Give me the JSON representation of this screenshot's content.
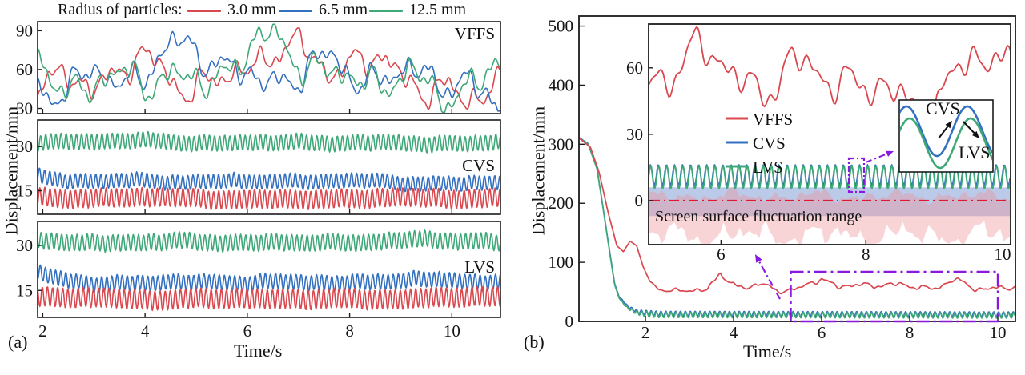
{
  "colors": {
    "red": "#d9484f",
    "blue": "#3470c0",
    "green": "#3fa878",
    "purple": "#8a18e0",
    "crimson": "#e01830",
    "axis": "#1c1c1c",
    "band_blue": "rgba(104,138,205,0.45)",
    "band_pink": "rgba(238,142,150,0.38)"
  },
  "chart_data": [
    {
      "type": "line",
      "panel": "(a)",
      "xlabel": "Time/s",
      "ylabel": "Displacement/mm",
      "xlim": [
        1.9,
        10.95
      ],
      "xticks": [
        2,
        4,
        6,
        8,
        10
      ],
      "legend": {
        "title": "Radius of particles:",
        "entries": [
          {
            "label": "3.0 mm",
            "color": "red"
          },
          {
            "label": "6.5 mm",
            "color": "blue"
          },
          {
            "label": "12.5 mm",
            "color": "green"
          }
        ]
      },
      "subplots": [
        {
          "label": "VFFS",
          "ylim": [
            26,
            97
          ],
          "yticks": [
            30,
            60,
            90
          ],
          "series": [
            {
              "legend": "3.0 mm",
              "color": "red",
              "kind": "wander",
              "mean": 57,
              "amp": 40,
              "clamp": [
                28,
                92
              ],
              "seed": 11
            },
            {
              "legend": "6.5 mm",
              "color": "blue",
              "kind": "wander",
              "mean": 56,
              "amp": 40,
              "clamp": [
                28,
                90
              ],
              "seed": 22
            },
            {
              "legend": "12.5 mm",
              "color": "green",
              "kind": "wander",
              "mean": 56,
              "amp": 42,
              "clamp": [
                27,
                95
              ],
              "seed": 33
            }
          ]
        },
        {
          "label": "CVS",
          "ylim": [
            7,
            39
          ],
          "yticks": [
            15,
            30
          ],
          "series": [
            {
              "legend": "12.5 mm",
              "color": "green",
              "kind": "osc",
              "mean": 31.4,
              "slow": 1.3,
              "amp": 2.6,
              "freq": 10,
              "seed": 41
            },
            {
              "legend": "6.5 mm",
              "color": "blue",
              "kind": "osc",
              "mean": 18.0,
              "slow": 1.4,
              "amp": 2.4,
              "freq": 10,
              "seed": 42,
              "start_boost": 3.2
            },
            {
              "legend": "3.0 mm",
              "color": "red",
              "kind": "osc",
              "mean": 12.4,
              "slow": 1.1,
              "amp": 3.1,
              "freq": 10,
              "seed": 43
            }
          ]
        },
        {
          "label": "LVS",
          "ylim": [
            6,
            38
          ],
          "yticks": [
            15,
            30
          ],
          "series": [
            {
              "legend": "12.5 mm",
              "color": "green",
              "kind": "osc",
              "mean": 31.2,
              "slow": 1.3,
              "amp": 2.7,
              "freq": 10,
              "seed": 51
            },
            {
              "legend": "6.5 mm",
              "color": "blue",
              "kind": "osc",
              "mean": 17.8,
              "slow": 1.5,
              "amp": 2.5,
              "freq": 10,
              "seed": 52,
              "start_boost": 3.0
            },
            {
              "legend": "3.0 mm",
              "color": "red",
              "kind": "osc",
              "mean": 12.3,
              "slow": 1.1,
              "amp": 3.2,
              "freq": 10,
              "seed": 53
            }
          ]
        }
      ]
    },
    {
      "type": "line",
      "panel": "(b)",
      "xlabel": "Time/s",
      "ylabel": "Displacement/mm",
      "xlim": [
        0.49,
        10.4
      ],
      "ylim": [
        0,
        517
      ],
      "xticks": [
        2,
        4,
        6,
        8,
        10
      ],
      "yticks": [
        0,
        100,
        200,
        300,
        400,
        500
      ],
      "series": [
        {
          "name": "CVS",
          "color": "blue",
          "kind": "decay_osc",
          "keypoints": [
            [
              0.5,
              311
            ],
            [
              0.7,
              301
            ],
            [
              0.9,
              259
            ],
            [
              1.05,
              186
            ],
            [
              1.2,
              112
            ],
            [
              1.3,
              64
            ],
            [
              1.4,
              42
            ],
            [
              1.5,
              34
            ],
            [
              1.6,
              25
            ],
            [
              1.8,
              17
            ],
            [
              2.0,
              14.5
            ],
            [
              2.3,
              13
            ],
            [
              10.4,
              12
            ]
          ],
          "osc_amp": 4.2,
          "osc_freq": 9,
          "osc_phase": 0.5,
          "ramp": [
            1.35,
            2.0
          ]
        },
        {
          "name": "LVS",
          "color": "green",
          "kind": "decay_osc",
          "keypoints": [
            [
              0.5,
              310
            ],
            [
              0.7,
              300
            ],
            [
              0.9,
              258
            ],
            [
              1.05,
              185
            ],
            [
              1.2,
              110
            ],
            [
              1.3,
              62
            ],
            [
              1.4,
              40
            ],
            [
              1.5,
              30
            ],
            [
              1.6,
              22
            ],
            [
              1.8,
              15
            ],
            [
              2.0,
              12.5
            ],
            [
              2.3,
              11
            ],
            [
              10.4,
              10
            ]
          ],
          "osc_amp": 4.6,
          "osc_freq": 9,
          "osc_phase": 0,
          "ramp": [
            1.35,
            2.0
          ]
        },
        {
          "name": "VFFS",
          "color": "red",
          "kind": "decay_noise",
          "keypoints": [
            [
              0.5,
              310
            ],
            [
              0.75,
              295
            ],
            [
              0.95,
              252
            ],
            [
              1.15,
              185
            ],
            [
              1.35,
              128
            ],
            [
              1.5,
              118
            ],
            [
              1.65,
              136
            ],
            [
              1.8,
              128
            ],
            [
              1.95,
              92
            ],
            [
              2.1,
              68
            ],
            [
              2.3,
              55
            ],
            [
              2.6,
              50
            ],
            [
              3.0,
              48
            ],
            [
              3.4,
              52
            ],
            [
              3.7,
              86
            ],
            [
              3.95,
              62
            ],
            [
              4.3,
              50
            ],
            [
              4.6,
              64
            ],
            [
              5.0,
              52
            ],
            [
              5.5,
              58
            ],
            [
              6.0,
              80
            ],
            [
              6.4,
              58
            ],
            [
              7.0,
              58
            ],
            [
              7.5,
              63
            ],
            [
              8.0,
              58
            ],
            [
              8.6,
              55
            ],
            [
              9.0,
              66
            ],
            [
              9.5,
              58
            ],
            [
              10.0,
              63
            ],
            [
              10.4,
              58
            ]
          ],
          "noise_amp": 13,
          "seed": 77,
          "ramp": [
            2.0,
            2.8
          ],
          "clamp": [
            30,
            95
          ]
        }
      ],
      "zoom_box": {
        "x": [
          5.3,
          10.0
        ],
        "y": [
          0,
          84
        ]
      },
      "inset": {
        "xlim": [
          5,
          10
        ],
        "ylim": [
          -19.9,
          79.8
        ],
        "xticks": [
          6,
          8,
          10
        ],
        "yticks": [
          0,
          30,
          60
        ],
        "series": [
          {
            "name": "VFFS",
            "color": "red",
            "kind": "wander",
            "mean": 55,
            "amp": 30,
            "clamp": [
              34,
              79
            ],
            "seed": 88
          },
          {
            "name": "CVS",
            "color": "blue",
            "kind": "sine",
            "mean": 11.6,
            "amp": 4.6,
            "freq": 9,
            "phase": 0.15
          },
          {
            "name": "LVS",
            "color": "green",
            "kind": "sine",
            "mean": 10.6,
            "amp": 5.2,
            "freq": 9,
            "phase": 0
          }
        ],
        "band_y": [
          -7,
          6
        ],
        "zero_line_y": 0,
        "pink_region": {
          "top_base": 2,
          "top_amp": 4.5,
          "bottom_base": -16,
          "bottom_amp": 9,
          "seed_top": 5,
          "seed_bottom": 6
        },
        "annotation": "Screen surface fluctuation range",
        "legend": [
          {
            "label": "VFFS",
            "color": "red"
          },
          {
            "label": "CVS",
            "color": "blue"
          },
          {
            "label": "LVS",
            "color": "green"
          }
        ],
        "inner_inset": {
          "labels": [
            "CVS",
            "LVS"
          ]
        }
      }
    }
  ]
}
